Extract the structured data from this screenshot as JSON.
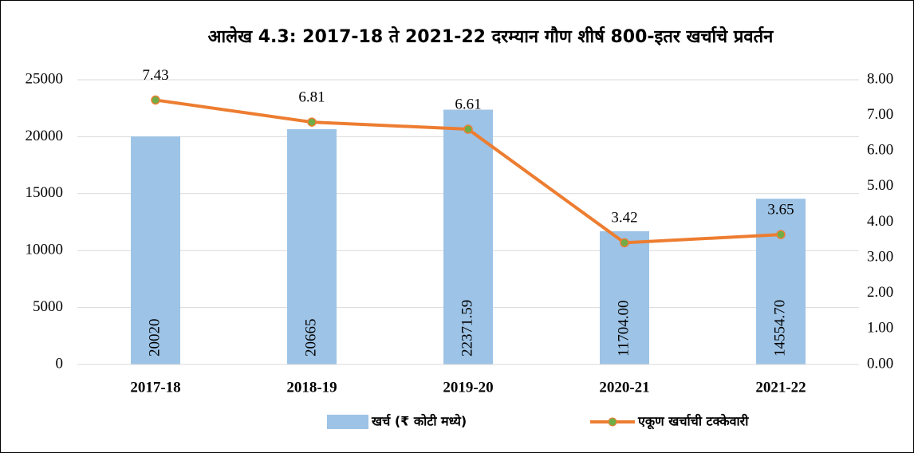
{
  "chart_data": {
    "type": "bar_line",
    "title": "आलेख 4.3: 2017-18 ते 2021-22 दरम्यान गौण शीर्ष 800-इतर खर्चाचे प्रवर्तन",
    "categories": [
      "2017-18",
      "2018-19",
      "2019-20",
      "2020-21",
      "2021-22"
    ],
    "series": [
      {
        "name": "खर्च (₹ कोटी मध्ये)",
        "color": "#9dc3e6",
        "type": "bar",
        "values": [
          20020,
          20665,
          22371.59,
          11704.0,
          14554.7
        ],
        "value_labels": [
          "20020",
          "20665",
          "22371.59",
          "11704.00",
          "14554.70"
        ]
      },
      {
        "name": "एकूण खर्चाची टक्केवारी",
        "color": "#ed7d31",
        "marker_color": "#70ad47",
        "type": "line",
        "axis": "y2",
        "values": [
          7.43,
          6.81,
          6.61,
          3.42,
          3.65
        ]
      }
    ],
    "ylim": [
      0,
      25000
    ],
    "yticks": [
      0,
      5000,
      10000,
      15000,
      20000,
      25000
    ],
    "y2lim": [
      0,
      8
    ],
    "y2ticks": [
      {
        "value": 0,
        "label": "0.00"
      },
      {
        "value": 1,
        "label": "1.00"
      },
      {
        "value": 2,
        "label": "2.00"
      },
      {
        "value": 3,
        "label": "3.00"
      },
      {
        "value": 4,
        "label": "4.00"
      },
      {
        "value": 5,
        "label": "5.00"
      },
      {
        "value": 6,
        "label": "6.00"
      },
      {
        "value": 7,
        "label": "7.00"
      },
      {
        "value": 8,
        "label": "8.00"
      }
    ],
    "grid": true,
    "legend": "bottom"
  }
}
